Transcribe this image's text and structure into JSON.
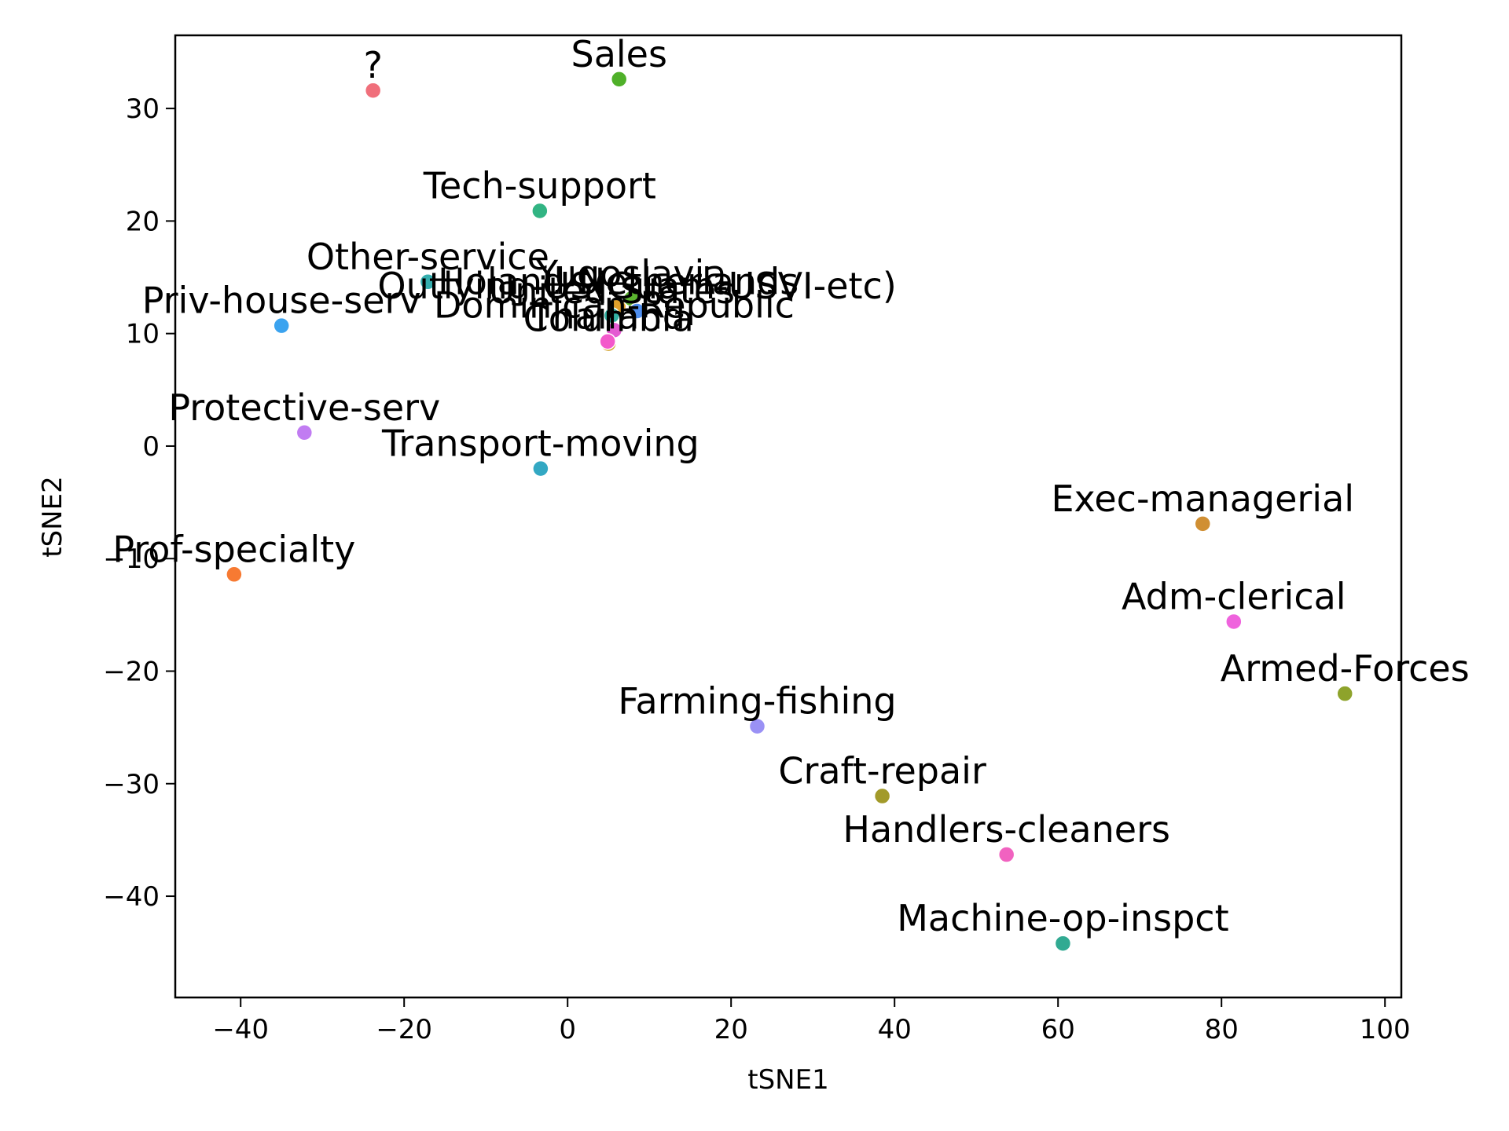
{
  "chart_data": {
    "type": "scatter",
    "xlabel": "tSNE1",
    "ylabel": "tSNE2",
    "xlim": [
      -48,
      102
    ],
    "ylim": [
      -49,
      36.5
    ],
    "xticks": [
      -40,
      -20,
      0,
      20,
      40,
      60,
      80,
      100
    ],
    "yticks": [
      -40,
      -30,
      -20,
      -10,
      0,
      10,
      20,
      30
    ],
    "grid": false,
    "legend": "none",
    "points": [
      {
        "label": "?",
        "x": -23.8,
        "y": 31.6,
        "color": "#f06f7b"
      },
      {
        "label": "Sales",
        "x": 6.3,
        "y": 32.6,
        "color": "#4fb029"
      },
      {
        "label": "Tech-support",
        "x": -3.4,
        "y": 20.9,
        "color": "#32b483"
      },
      {
        "label": "Other-service",
        "x": -17.1,
        "y": 14.6,
        "color": "#34aeae"
      },
      {
        "label": "Priv-house-serv",
        "x": -35.0,
        "y": 10.7,
        "color": "#3ba3ef"
      },
      {
        "label": "Protective-serv",
        "x": -32.2,
        "y": 1.2,
        "color": "#c17cf2"
      },
      {
        "label": "Transport-moving",
        "x": -3.3,
        "y": -2.0,
        "color": "#33a8c3"
      },
      {
        "label": "Prof-specialty",
        "x": -40.8,
        "y": -11.4,
        "color": "#f77a32"
      },
      {
        "label": "Exec-managerial",
        "x": 77.7,
        "y": -6.9,
        "color": "#d08f33"
      },
      {
        "label": "Adm-clerical",
        "x": 81.5,
        "y": -15.6,
        "color": "#ef63dd"
      },
      {
        "label": "Armed-Forces",
        "x": 95.1,
        "y": -22.0,
        "color": "#8ea32b"
      },
      {
        "label": "Farming-fishing",
        "x": 23.2,
        "y": -24.9,
        "color": "#9a91f5"
      },
      {
        "label": "Craft-repair",
        "x": 38.5,
        "y": -31.1,
        "color": "#a29a2a"
      },
      {
        "label": "Handlers-cleaners",
        "x": 53.7,
        "y": -36.3,
        "color": "#f162c0"
      },
      {
        "label": "Machine-op-inspct",
        "x": 60.6,
        "y": -44.2,
        "color": "#31aa92"
      },
      {
        "label": "Holand-Netherlands",
        "x": 6.2,
        "y": 12.4,
        "color": "#e0a02c"
      },
      {
        "label": "Yugoslavia",
        "x": 7.8,
        "y": 13.1,
        "color": "#5bb52f"
      },
      {
        "label": "United-States",
        "x": 5.4,
        "y": 11.6,
        "color": "#33b2a4"
      },
      {
        "label": "Outlying-US(Guam-USVI-etc)",
        "x": 8.5,
        "y": 12.0,
        "color": "#4f8ff0"
      },
      {
        "label": "Dominican-Republic",
        "x": 5.7,
        "y": 10.3,
        "color": "#e45ad2"
      },
      {
        "label": "Columbia",
        "x": 5.0,
        "y": 9.1,
        "color": "#d2a32f"
      },
      {
        "label": "Thailand",
        "x": 4.9,
        "y": 9.3,
        "color": "#f358cb"
      }
    ]
  }
}
